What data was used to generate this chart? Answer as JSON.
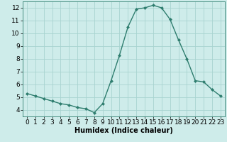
{
  "x": [
    0,
    1,
    2,
    3,
    4,
    5,
    6,
    7,
    8,
    9,
    10,
    11,
    12,
    13,
    14,
    15,
    16,
    17,
    18,
    19,
    20,
    21,
    22,
    23
  ],
  "y": [
    5.3,
    5.1,
    4.9,
    4.7,
    4.5,
    4.4,
    4.2,
    4.1,
    3.8,
    4.5,
    6.3,
    8.3,
    10.5,
    11.9,
    12.0,
    12.2,
    12.0,
    11.1,
    9.5,
    8.0,
    6.3,
    6.2,
    5.6,
    5.1
  ],
  "line_color": "#2e7d6e",
  "marker": "D",
  "marker_size": 2,
  "line_width": 1.0,
  "xlabel": "Humidex (Indice chaleur)",
  "xlabel_fontsize": 7,
  "background_color": "#ceecea",
  "grid_color": "#a8d4d0",
  "xlim": [
    -0.5,
    23.5
  ],
  "ylim": [
    3.5,
    12.5
  ],
  "yticks": [
    4,
    5,
    6,
    7,
    8,
    9,
    10,
    11,
    12
  ],
  "xticks": [
    0,
    1,
    2,
    3,
    4,
    5,
    6,
    7,
    8,
    9,
    10,
    11,
    12,
    13,
    14,
    15,
    16,
    17,
    18,
    19,
    20,
    21,
    22,
    23
  ],
  "tick_fontsize": 6.5
}
